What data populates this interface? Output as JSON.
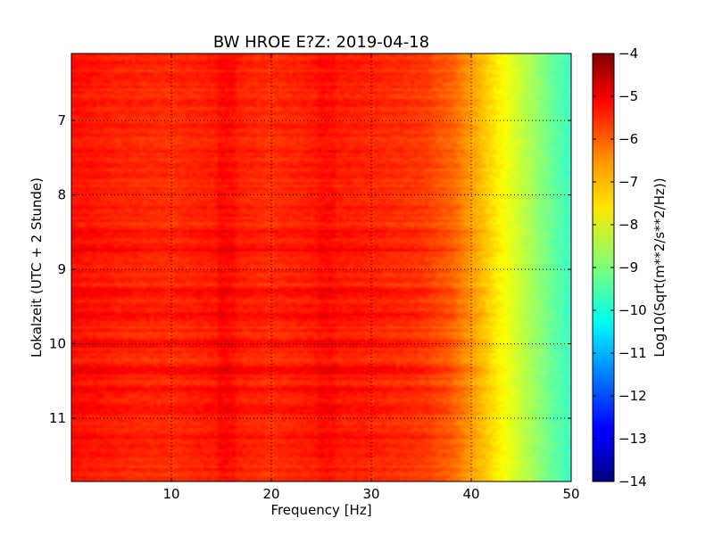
{
  "chart_data": {
    "type": "heatmap",
    "title": "BW HROE E?Z: 2019-04-18",
    "xlabel": "Frequency [Hz]",
    "ylabel": "Lokalzeit (UTC + 2 Stunde)",
    "xlim": [
      0,
      50
    ],
    "ylim": [
      6.1,
      11.85
    ],
    "y_inverted": true,
    "xticks": [
      10,
      20,
      30,
      40,
      50
    ],
    "yticks": [
      7,
      8,
      9,
      10,
      11
    ],
    "grid": true,
    "colormap": "jet",
    "colorbar": {
      "label": "Log10(Sqrt(m**2/s**2/Hz))",
      "min": -14,
      "max": -4,
      "ticks": [
        -4,
        -5,
        -6,
        -7,
        -8,
        -9,
        -10,
        -11,
        -12,
        -13,
        -14
      ]
    },
    "spectrum_profile": {
      "frequency_hz": [
        0,
        5,
        10,
        15,
        20,
        25,
        30,
        35,
        38,
        40,
        42,
        44,
        46,
        48,
        50
      ],
      "log10_amplitude": [
        -5.4,
        -5.6,
        -5.7,
        -5.5,
        -5.7,
        -5.5,
        -5.6,
        -5.8,
        -6.2,
        -6.8,
        -7.4,
        -8.0,
        -8.6,
        -9.2,
        -9.7
      ]
    },
    "strong_bands_hour": [
      8.25,
      8.5,
      8.75,
      9.3,
      9.6,
      10.0,
      10.35,
      10.6,
      10.9,
      11.25
    ]
  }
}
